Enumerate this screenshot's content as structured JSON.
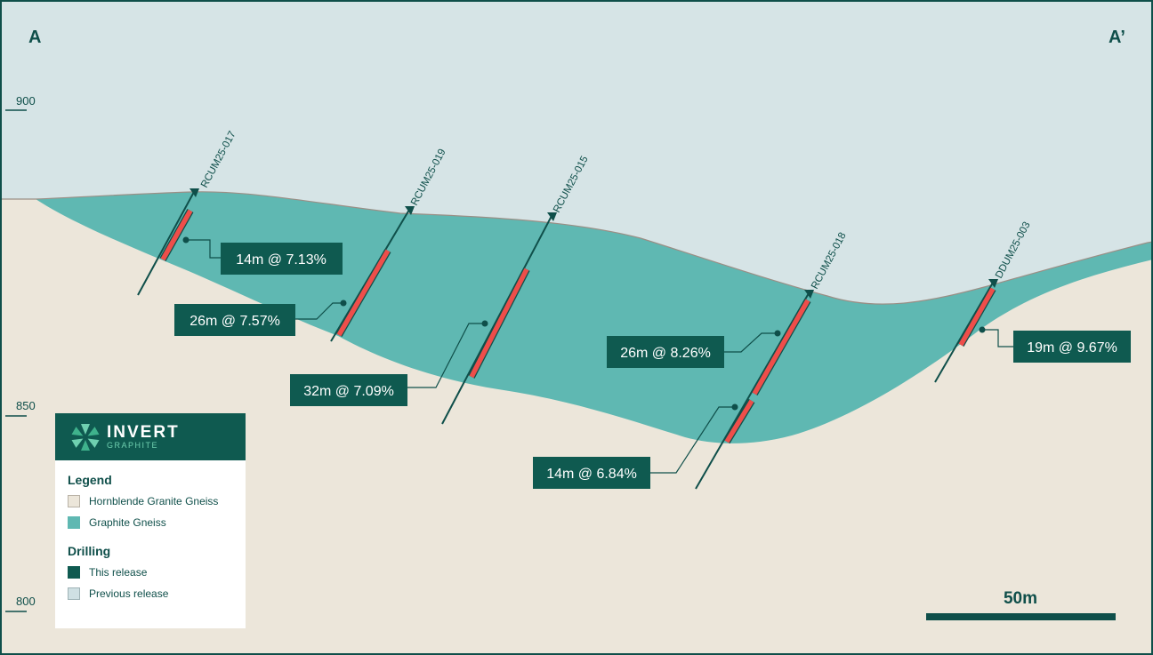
{
  "section": {
    "start_label": "A",
    "end_label": "A’"
  },
  "elevations": [
    "900",
    "850",
    "800"
  ],
  "holes": [
    {
      "id": "RCUM25-017",
      "intercept": "14m @ 7.13%",
      "status": "this-release"
    },
    {
      "id": "RCUM25-019",
      "intercept": "26m @ 7.57%",
      "status": "this-release"
    },
    {
      "id": "RCUM25-015",
      "intercept": "32m @ 7.09%",
      "status": "this-release"
    },
    {
      "id": "RCUM25-018",
      "intercepts": [
        "26m @ 8.26%",
        "14m @ 6.84%"
      ],
      "status": "this-release"
    },
    {
      "id": "DDUM25-003",
      "intercept": "19m @ 9.67%",
      "status": "this-release"
    }
  ],
  "legend": {
    "brand": {
      "name": "INVERT",
      "sub": "GRAPHITE"
    },
    "legend_title": "Legend",
    "lithology": [
      {
        "label": "Hornblende Granite Gneiss",
        "color": "#ece6da"
      },
      {
        "label": "Graphite Gneiss",
        "color": "#5fb8b2"
      }
    ],
    "drilling_title": "Drilling",
    "drilling": [
      {
        "label": "This release",
        "color": "#0f5a50"
      },
      {
        "label": "Previous release",
        "color": "#cfe0e3"
      }
    ]
  },
  "scale_bar": {
    "label": "50m"
  },
  "colors": {
    "sky": "#d6e4e6",
    "host_rock": "#ece6da",
    "graphite_gneiss": "#5fb8b2",
    "intercept": "#ee4e4a",
    "callout": "#0f5a50",
    "frame": "#0f4f4a"
  }
}
